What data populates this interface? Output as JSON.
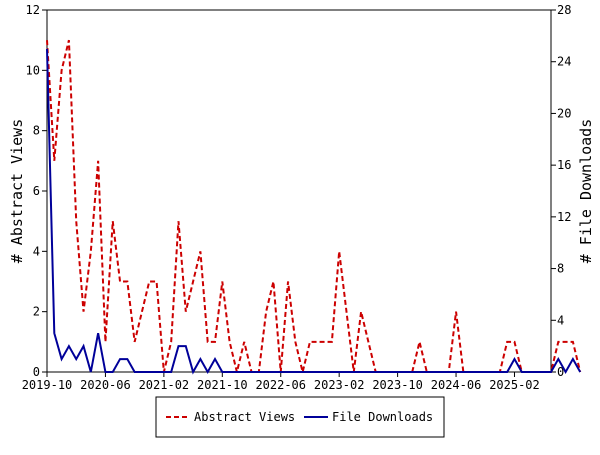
{
  "chart_data": {
    "type": "line",
    "title": "",
    "xlabel": "",
    "ylabel_left": "# Abstract Views",
    "ylabel_right": "# File Downloads",
    "ylim_left": [
      0,
      12
    ],
    "ylim_right": [
      0,
      28
    ],
    "yticks_left": [
      "0",
      "2",
      "4",
      "6",
      "8",
      "10",
      "12"
    ],
    "yticks_right": [
      "0",
      "4",
      "8",
      "12",
      "16",
      "20",
      "24",
      "28"
    ],
    "x_start": "2019-10",
    "x_end": "2025-07",
    "x_tick_labels": [
      "2019-10",
      "2020-06",
      "2021-02",
      "2021-10",
      "2022-06",
      "2023-02",
      "2023-10",
      "2024-06",
      "2025-02"
    ],
    "grid": false,
    "legend_position": "bottom-center",
    "series": [
      {
        "name": "Abstract Views",
        "axis": "left",
        "color": "#cc0000",
        "style": "dashed",
        "values": [
          11,
          7,
          10,
          11,
          5,
          2,
          4,
          7,
          1,
          5,
          3,
          3,
          1,
          2,
          3,
          3,
          0,
          1,
          5,
          2,
          3,
          4,
          1,
          1,
          3,
          1,
          0,
          1,
          0,
          0,
          2,
          3,
          0,
          3,
          1,
          0,
          1,
          1,
          1,
          1,
          4,
          2,
          0,
          2,
          1,
          0,
          0,
          0,
          0,
          0,
          0,
          1,
          0,
          0,
          0,
          0,
          2,
          0,
          0,
          0,
          0,
          0,
          0,
          1,
          1,
          0,
          0,
          0,
          0,
          0,
          1,
          1,
          1,
          0
        ]
      },
      {
        "name": "File Downloads",
        "axis": "right",
        "color": "#000099",
        "style": "solid",
        "values": [
          25,
          3,
          1,
          2,
          1,
          2,
          0,
          3,
          0,
          0,
          1,
          1,
          0,
          0,
          0,
          0,
          0,
          0,
          2,
          2,
          0,
          1,
          0,
          1,
          0,
          0,
          0,
          0,
          0,
          0,
          0,
          0,
          0,
          0,
          0,
          0,
          0,
          0,
          0,
          0,
          0,
          0,
          0,
          0,
          0,
          0,
          0,
          0,
          0,
          0,
          0,
          0,
          0,
          0,
          0,
          0,
          0,
          0,
          0,
          0,
          0,
          0,
          0,
          0,
          1,
          0,
          0,
          0,
          0,
          0,
          1,
          0,
          1,
          0
        ]
      }
    ]
  }
}
